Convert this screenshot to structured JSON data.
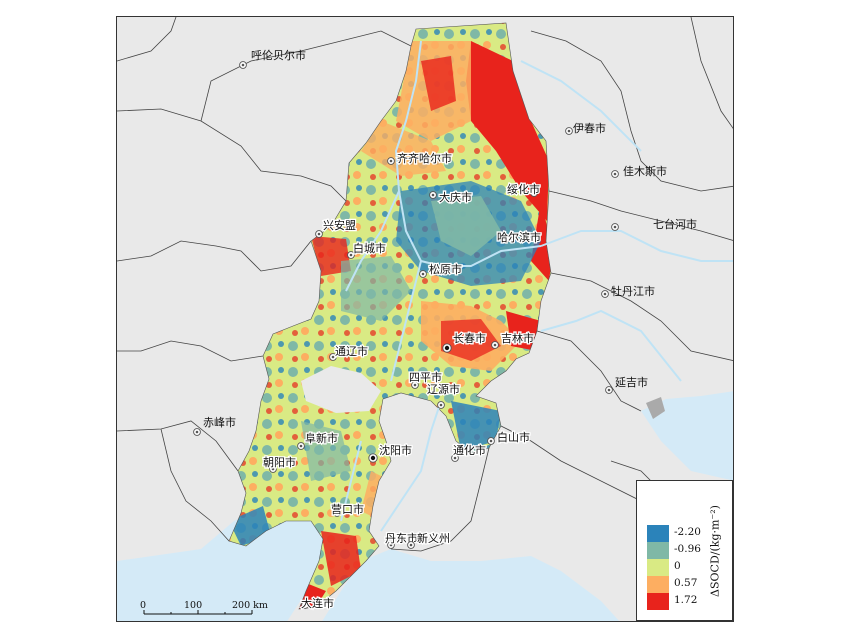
{
  "map": {
    "cities": [
      {
        "name": "呼伦贝尔市"
      },
      {
        "name": "伊春市"
      },
      {
        "name": "齐齐哈尔市"
      },
      {
        "name": "佳木斯市"
      },
      {
        "name": "大庆市"
      },
      {
        "name": "绥化市"
      },
      {
        "name": "七台河市"
      },
      {
        "name": "兴安盟"
      },
      {
        "name": "哈尔滨市"
      },
      {
        "name": "白城市"
      },
      {
        "name": "松原市"
      },
      {
        "name": "牡丹江市"
      },
      {
        "name": "长春市"
      },
      {
        "name": "吉林市"
      },
      {
        "name": "通辽市"
      },
      {
        "name": "四平市"
      },
      {
        "name": "辽源市"
      },
      {
        "name": "延吉市"
      },
      {
        "name": "赤峰市"
      },
      {
        "name": "阜新市"
      },
      {
        "name": "白山市"
      },
      {
        "name": "沈阳市"
      },
      {
        "name": "通化市"
      },
      {
        "name": "朝阳市"
      },
      {
        "name": "营口市"
      },
      {
        "name": "丹东市"
      },
      {
        "name": "新义州"
      },
      {
        "name": "大连市"
      }
    ]
  },
  "legend": {
    "title": "ΔSOCD/(kg·m⁻²)",
    "items": [
      {
        "label": "-2.20",
        "color": "#2b83ba"
      },
      {
        "label": "-0.96",
        "color": "#7fb8a6"
      },
      {
        "label": "0",
        "color": "#d9ea84"
      },
      {
        "label": "0.57",
        "color": "#fdae61"
      },
      {
        "label": "1.72",
        "color": "#e8231c"
      }
    ]
  },
  "scale_bar": {
    "labels": [
      "0",
      "100",
      "200 km"
    ]
  },
  "colors": {
    "background": "#e9e9e9",
    "sea": "#d4eaf7",
    "boundary": "#444444",
    "river": "#bfe3f5"
  }
}
